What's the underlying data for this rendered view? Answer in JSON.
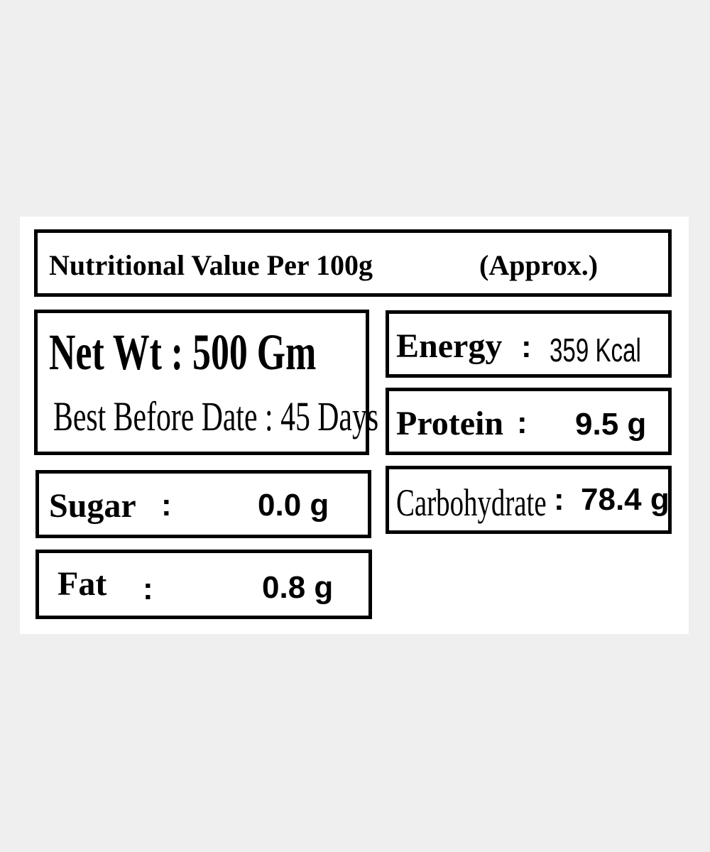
{
  "header": {
    "title": "Nutritional Value Per 100g",
    "note": "(Approx.)"
  },
  "net_weight": {
    "label": "Net Wt",
    "separator": ":",
    "value": "500 Gm"
  },
  "shelf_life": {
    "label": "Best Before Date",
    "separator": ":",
    "value": "45 Days"
  },
  "nutrients": [
    {
      "label": "Energy",
      "separator": ":",
      "value": "359 Kcal"
    },
    {
      "label": "Protein",
      "separator": ":",
      "value": "9.5 g"
    },
    {
      "label": "Carbohydrate",
      "separator": ":",
      "value": "78.4 g"
    },
    {
      "label": "Sugar",
      "separator": ":",
      "value": "0.0 g"
    },
    {
      "label": "Fat",
      "separator": ":",
      "value": "0.8 g"
    }
  ]
}
